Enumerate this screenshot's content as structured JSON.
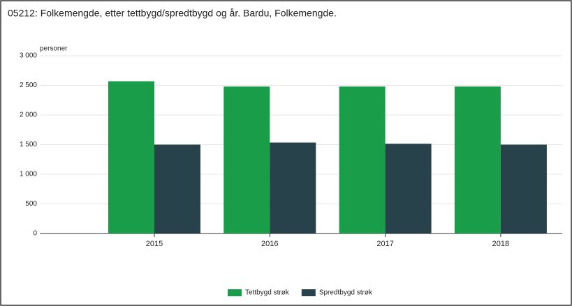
{
  "chart_data": {
    "type": "bar",
    "title": "05212: Folkemengde, etter tettbygd/spredtbygd og år. Bardu, Folkemengde.",
    "y_label": "personer",
    "categories": [
      "2015",
      "2016",
      "2017",
      "2018"
    ],
    "series": [
      {
        "name": "Tettbygd strøk",
        "color": "#1a9d49",
        "values": [
          2570,
          2480,
          2480,
          2480
        ]
      },
      {
        "name": "Spredtbygd strøk",
        "color": "#27424a",
        "values": [
          1500,
          1535,
          1515,
          1500
        ]
      }
    ],
    "ylim": [
      0,
      3000
    ],
    "yticks": [
      0,
      500,
      {
        "value": 1000,
        "label": "1 000"
      },
      {
        "value": 1500,
        "label": "1 500"
      },
      {
        "value": 2000,
        "label": "2 000"
      },
      {
        "value": 2500,
        "label": "2 500"
      },
      {
        "value": 3000,
        "label": "3 000"
      }
    ],
    "grid": true,
    "legend": "bottom"
  }
}
